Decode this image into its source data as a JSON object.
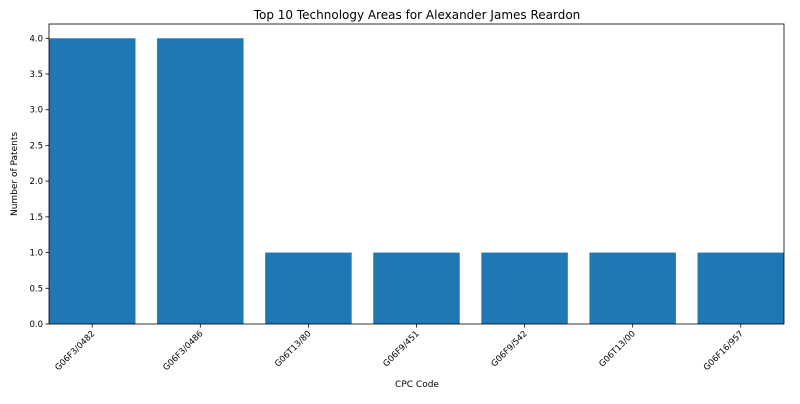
{
  "chart_data": {
    "type": "bar",
    "title": "Top 10 Technology Areas for Alexander James Reardon",
    "xlabel": "CPC Code",
    "ylabel": "Number of Patents",
    "categories": [
      "G06F3/0482",
      "G06F3/0486",
      "G06T13/80",
      "G06F9/451",
      "G06F9/542",
      "G06T13/00",
      "G06F16/957"
    ],
    "values": [
      4,
      4,
      1,
      1,
      1,
      1,
      1
    ],
    "ylim": [
      0,
      4.2
    ],
    "yticks": [
      "0.0",
      "0.5",
      "1.0",
      "1.5",
      "2.0",
      "2.5",
      "3.0",
      "3.5",
      "4.0"
    ],
    "grid": false,
    "legend": "none",
    "bar_color": "#1f77b4"
  }
}
